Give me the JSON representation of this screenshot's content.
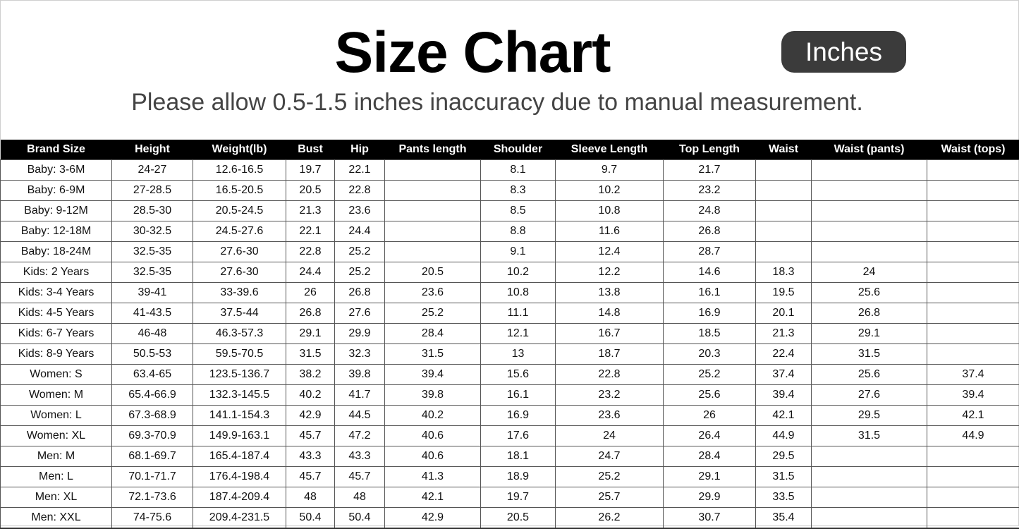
{
  "header": {
    "title": "Size Chart",
    "unit_badge": "Inches",
    "subtitle": "Please allow 0.5-1.5 inches inaccuracy due to manual measurement."
  },
  "table": {
    "columns": [
      "Brand Size",
      "Height",
      "Weight(lb)",
      "Bust",
      "Hip",
      "Pants length",
      "Shoulder",
      "Sleeve Length",
      "Top Length",
      "Waist",
      "Waist  (pants)",
      "Waist (tops)"
    ],
    "rows": [
      [
        "Baby: 3-6M",
        "24-27",
        "12.6-16.5",
        "19.7",
        "22.1",
        "",
        "8.1",
        "9.7",
        "21.7",
        "",
        "",
        ""
      ],
      [
        "Baby: 6-9M",
        "27-28.5",
        "16.5-20.5",
        "20.5",
        "22.8",
        "",
        "8.3",
        "10.2",
        "23.2",
        "",
        "",
        ""
      ],
      [
        "Baby: 9-12M",
        "28.5-30",
        "20.5-24.5",
        "21.3",
        "23.6",
        "",
        "8.5",
        "10.8",
        "24.8",
        "",
        "",
        ""
      ],
      [
        "Baby: 12-18M",
        "30-32.5",
        "24.5-27.6",
        "22.1",
        "24.4",
        "",
        "8.8",
        "11.6",
        "26.8",
        "",
        "",
        ""
      ],
      [
        "Baby: 18-24M",
        "32.5-35",
        "27.6-30",
        "22.8",
        "25.2",
        "",
        "9.1",
        "12.4",
        "28.7",
        "",
        "",
        ""
      ],
      [
        "Kids: 2 Years",
        "32.5-35",
        "27.6-30",
        "24.4",
        "25.2",
        "20.5",
        "10.2",
        "12.2",
        "14.6",
        "18.3",
        "24",
        ""
      ],
      [
        "Kids: 3-4 Years",
        "39-41",
        "33-39.6",
        "26",
        "26.8",
        "23.6",
        "10.8",
        "13.8",
        "16.1",
        "19.5",
        "25.6",
        ""
      ],
      [
        "Kids: 4-5 Years",
        "41-43.5",
        "37.5-44",
        "26.8",
        "27.6",
        "25.2",
        "11.1",
        "14.8",
        "16.9",
        "20.1",
        "26.8",
        ""
      ],
      [
        "Kids: 6-7 Years",
        "46-48",
        "46.3-57.3",
        "29.1",
        "29.9",
        "28.4",
        "12.1",
        "16.7",
        "18.5",
        "21.3",
        "29.1",
        ""
      ],
      [
        "Kids: 8-9 Years",
        "50.5-53",
        "59.5-70.5",
        "31.5",
        "32.3",
        "31.5",
        "13",
        "18.7",
        "20.3",
        "22.4",
        "31.5",
        ""
      ],
      [
        "Women: S",
        "63.4-65",
        "123.5-136.7",
        "38.2",
        "39.8",
        "39.4",
        "15.6",
        "22.8",
        "25.2",
        "37.4",
        "25.6",
        "37.4"
      ],
      [
        "Women: M",
        "65.4-66.9",
        "132.3-145.5",
        "40.2",
        "41.7",
        "39.8",
        "16.1",
        "23.2",
        "25.6",
        "39.4",
        "27.6",
        "39.4"
      ],
      [
        "Women: L",
        "67.3-68.9",
        "141.1-154.3",
        "42.9",
        "44.5",
        "40.2",
        "16.9",
        "23.6",
        "26",
        "42.1",
        "29.5",
        "42.1"
      ],
      [
        "Women: XL",
        "69.3-70.9",
        "149.9-163.1",
        "45.7",
        "47.2",
        "40.6",
        "17.6",
        "24",
        "26.4",
        "44.9",
        "31.5",
        "44.9"
      ],
      [
        "Men: M",
        "68.1-69.7",
        "165.4-187.4",
        "43.3",
        "43.3",
        "40.6",
        "18.1",
        "24.7",
        "28.4",
        "29.5",
        "",
        ""
      ],
      [
        "Men: L",
        "70.1-71.7",
        "176.4-198.4",
        "45.7",
        "45.7",
        "41.3",
        "18.9",
        "25.2",
        "29.1",
        "31.5",
        "",
        ""
      ],
      [
        "Men: XL",
        "72.1-73.6",
        "187.4-209.4",
        "48",
        "48",
        "42.1",
        "19.7",
        "25.7",
        "29.9",
        "33.5",
        "",
        ""
      ],
      [
        "Men: XXL",
        "74-75.6",
        "209.4-231.5",
        "50.4",
        "50.4",
        "42.9",
        "20.5",
        "26.2",
        "30.7",
        "35.4",
        "",
        ""
      ]
    ]
  }
}
